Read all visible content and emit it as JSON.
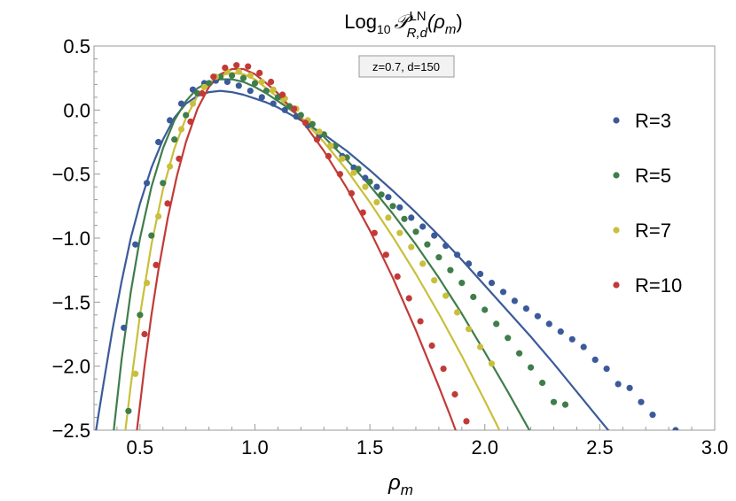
{
  "chart_data": {
    "type": "line",
    "title": {
      "prefix": "Log",
      "prefix_sub": "10",
      "symbol": "𝒫",
      "symbol_sup": "LN",
      "symbol_sub": "R,d",
      "argument": "(ρ",
      "argument_sub": "m",
      "argument_close": ")"
    },
    "xlabel": {
      "base": "ρ",
      "sub": "m"
    },
    "ylabel": "",
    "annotation": "z=0.7, d=150",
    "xlim": [
      0.3,
      3.0
    ],
    "ylim": [
      -2.5,
      0.5
    ],
    "x_ticks": [
      0.5,
      1.0,
      1.5,
      2.0,
      2.5,
      3.0
    ],
    "x_tick_labels": [
      "0.5",
      "1.0",
      "1.5",
      "2.0",
      "2.5",
      "3.0"
    ],
    "y_ticks": [
      0.5,
      0.0,
      -0.5,
      -1.0,
      -1.5,
      -2.0,
      -2.5
    ],
    "y_tick_labels": [
      "0.5",
      "0.0",
      "−0.5",
      "−1.0",
      "−1.5",
      "−2.0",
      "−2.5"
    ],
    "grid": false,
    "legend_placement": "right",
    "series": [
      {
        "name": "R=3",
        "color": "#3b5a9a",
        "curve": {
          "x": [
            0.3,
            0.34,
            0.38,
            0.42,
            0.46,
            0.5,
            0.55,
            0.6,
            0.65,
            0.7,
            0.75,
            0.8,
            0.85,
            0.9,
            0.95,
            1.0,
            1.05,
            1.1,
            1.15,
            1.2,
            1.3,
            1.4,
            1.5,
            1.6,
            1.7,
            1.8,
            1.9,
            2.0,
            2.1,
            2.2,
            2.3,
            2.4,
            2.5,
            2.56
          ],
          "y": [
            -2.6,
            -2.15,
            -1.72,
            -1.34,
            -1.0,
            -0.73,
            -0.45,
            -0.23,
            -0.06,
            0.05,
            0.11,
            0.14,
            0.15,
            0.14,
            0.12,
            0.09,
            0.06,
            0.02,
            -0.03,
            -0.08,
            -0.19,
            -0.32,
            -0.47,
            -0.63,
            -0.8,
            -0.98,
            -1.17,
            -1.37,
            -1.57,
            -1.77,
            -1.98,
            -2.2,
            -2.42,
            -2.55
          ]
        },
        "points": {
          "x": [
            0.43,
            0.48,
            0.53,
            0.58,
            0.63,
            0.68,
            0.73,
            0.78,
            0.83,
            0.88,
            0.93,
            0.98,
            1.03,
            1.08,
            1.13,
            1.18,
            1.23,
            1.28,
            1.33,
            1.38,
            1.43,
            1.48,
            1.53,
            1.58,
            1.63,
            1.68,
            1.73,
            1.78,
            1.83,
            1.88,
            1.93,
            1.98,
            2.03,
            2.08,
            2.13,
            2.18,
            2.23,
            2.28,
            2.33,
            2.38,
            2.43,
            2.48,
            2.53,
            2.58,
            2.63,
            2.68,
            2.73,
            2.83
          ],
          "y": [
            -1.7,
            -1.05,
            -0.57,
            -0.25,
            -0.08,
            0.05,
            0.16,
            0.21,
            0.23,
            0.22,
            0.19,
            0.15,
            0.1,
            0.05,
            0.0,
            -0.05,
            -0.12,
            -0.2,
            -0.28,
            -0.36,
            -0.45,
            -0.53,
            -0.6,
            -0.68,
            -0.76,
            -0.84,
            -0.91,
            -0.98,
            -1.06,
            -1.13,
            -1.2,
            -1.28,
            -1.35,
            -1.42,
            -1.49,
            -1.55,
            -1.61,
            -1.67,
            -1.73,
            -1.79,
            -1.85,
            -1.95,
            -2.02,
            -2.14,
            -2.17,
            -2.28,
            -2.38,
            -2.5
          ]
        }
      },
      {
        "name": "R=5",
        "color": "#3f7d4a",
        "curve": {
          "x": [
            0.38,
            0.42,
            0.46,
            0.5,
            0.55,
            0.6,
            0.65,
            0.7,
            0.75,
            0.8,
            0.85,
            0.9,
            0.95,
            1.0,
            1.05,
            1.1,
            1.15,
            1.2,
            1.3,
            1.4,
            1.5,
            1.6,
            1.7,
            1.8,
            1.9,
            2.0,
            2.1,
            2.2,
            2.24
          ],
          "y": [
            -2.6,
            -1.95,
            -1.42,
            -1.0,
            -0.6,
            -0.3,
            -0.08,
            0.07,
            0.17,
            0.22,
            0.24,
            0.24,
            0.22,
            0.18,
            0.13,
            0.07,
            0.01,
            -0.06,
            -0.21,
            -0.39,
            -0.59,
            -0.81,
            -1.05,
            -1.31,
            -1.59,
            -1.89,
            -2.2,
            -2.52,
            -2.62
          ]
        },
        "points": {
          "x": [
            0.45,
            0.5,
            0.55,
            0.6,
            0.65,
            0.7,
            0.75,
            0.8,
            0.85,
            0.9,
            0.95,
            1.0,
            1.05,
            1.1,
            1.15,
            1.2,
            1.25,
            1.3,
            1.35,
            1.4,
            1.45,
            1.5,
            1.55,
            1.6,
            1.65,
            1.7,
            1.75,
            1.8,
            1.85,
            1.9,
            1.95,
            2.0,
            2.05,
            2.1,
            2.15,
            2.2,
            2.25,
            2.3,
            2.35
          ],
          "y": [
            -2.35,
            -1.6,
            -0.98,
            -0.57,
            -0.23,
            -0.04,
            0.13,
            0.21,
            0.26,
            0.27,
            0.25,
            0.21,
            0.15,
            0.1,
            0.03,
            -0.04,
            -0.11,
            -0.19,
            -0.28,
            -0.37,
            -0.46,
            -0.56,
            -0.66,
            -0.75,
            -0.85,
            -0.95,
            -1.05,
            -1.15,
            -1.25,
            -1.35,
            -1.46,
            -1.56,
            -1.67,
            -1.78,
            -1.9,
            -2.01,
            -2.13,
            -2.28,
            -2.3
          ]
        }
      },
      {
        "name": "R=7",
        "color": "#c9bf3c",
        "curve": {
          "x": [
            0.43,
            0.46,
            0.5,
            0.55,
            0.6,
            0.65,
            0.7,
            0.75,
            0.8,
            0.85,
            0.9,
            0.95,
            1.0,
            1.05,
            1.1,
            1.15,
            1.2,
            1.3,
            1.4,
            1.5,
            1.6,
            1.7,
            1.8,
            1.9,
            2.0,
            2.05,
            2.08
          ],
          "y": [
            -2.6,
            -2.15,
            -1.6,
            -1.05,
            -0.62,
            -0.3,
            -0.06,
            0.11,
            0.21,
            0.27,
            0.29,
            0.28,
            0.24,
            0.17,
            0.1,
            0.02,
            -0.06,
            -0.25,
            -0.47,
            -0.72,
            -0.99,
            -1.28,
            -1.59,
            -1.92,
            -2.27,
            -2.45,
            -2.56
          ]
        },
        "points": {
          "x": [
            0.48,
            0.53,
            0.58,
            0.63,
            0.68,
            0.73,
            0.78,
            0.83,
            0.88,
            0.93,
            0.98,
            1.03,
            1.08,
            1.13,
            1.18,
            1.23,
            1.28,
            1.33,
            1.38,
            1.43,
            1.48,
            1.53,
            1.58,
            1.63,
            1.68,
            1.73,
            1.78,
            1.83,
            1.88,
            1.93,
            1.98,
            2.03
          ],
          "y": [
            -2.06,
            -1.35,
            -0.83,
            -0.44,
            -0.15,
            0.05,
            0.18,
            0.26,
            0.3,
            0.3,
            0.27,
            0.22,
            0.16,
            0.09,
            0.01,
            -0.08,
            -0.17,
            -0.28,
            -0.38,
            -0.49,
            -0.6,
            -0.72,
            -0.84,
            -0.96,
            -1.07,
            -1.2,
            -1.33,
            -1.45,
            -1.58,
            -1.71,
            -1.85,
            -1.98
          ]
        }
      },
      {
        "name": "R=10",
        "color": "#c23a37",
        "curve": {
          "x": [
            0.48,
            0.5,
            0.52,
            0.55,
            0.58,
            0.62,
            0.66,
            0.7,
            0.75,
            0.8,
            0.85,
            0.9,
            0.95,
            1.0,
            1.05,
            1.1,
            1.15,
            1.2,
            1.3,
            1.4,
            1.5,
            1.6,
            1.7,
            1.8,
            1.85,
            1.9,
            1.93
          ],
          "y": [
            -2.6,
            -2.3,
            -2.0,
            -1.6,
            -1.25,
            -0.85,
            -0.52,
            -0.25,
            0.01,
            0.18,
            0.28,
            0.32,
            0.32,
            0.28,
            0.21,
            0.13,
            0.03,
            -0.07,
            -0.32,
            -0.61,
            -0.94,
            -1.31,
            -1.72,
            -2.16,
            -2.39,
            -2.63,
            -2.76
          ]
        },
        "points": {
          "x": [
            0.52,
            0.57,
            0.62,
            0.67,
            0.72,
            0.77,
            0.82,
            0.87,
            0.92,
            0.97,
            1.02,
            1.07,
            1.12,
            1.17,
            1.22,
            1.27,
            1.32,
            1.37,
            1.42,
            1.47,
            1.52,
            1.57,
            1.62,
            1.67,
            1.72,
            1.77,
            1.82,
            1.87,
            1.92
          ],
          "y": [
            -1.75,
            -1.21,
            -0.73,
            -0.38,
            -0.09,
            0.13,
            0.26,
            0.33,
            0.35,
            0.34,
            0.29,
            0.22,
            0.12,
            0.01,
            -0.1,
            -0.23,
            -0.36,
            -0.5,
            -0.65,
            -0.8,
            -0.96,
            -1.13,
            -1.3,
            -1.47,
            -1.65,
            -1.84,
            -2.02,
            -2.22,
            -2.43
          ]
        }
      }
    ]
  }
}
